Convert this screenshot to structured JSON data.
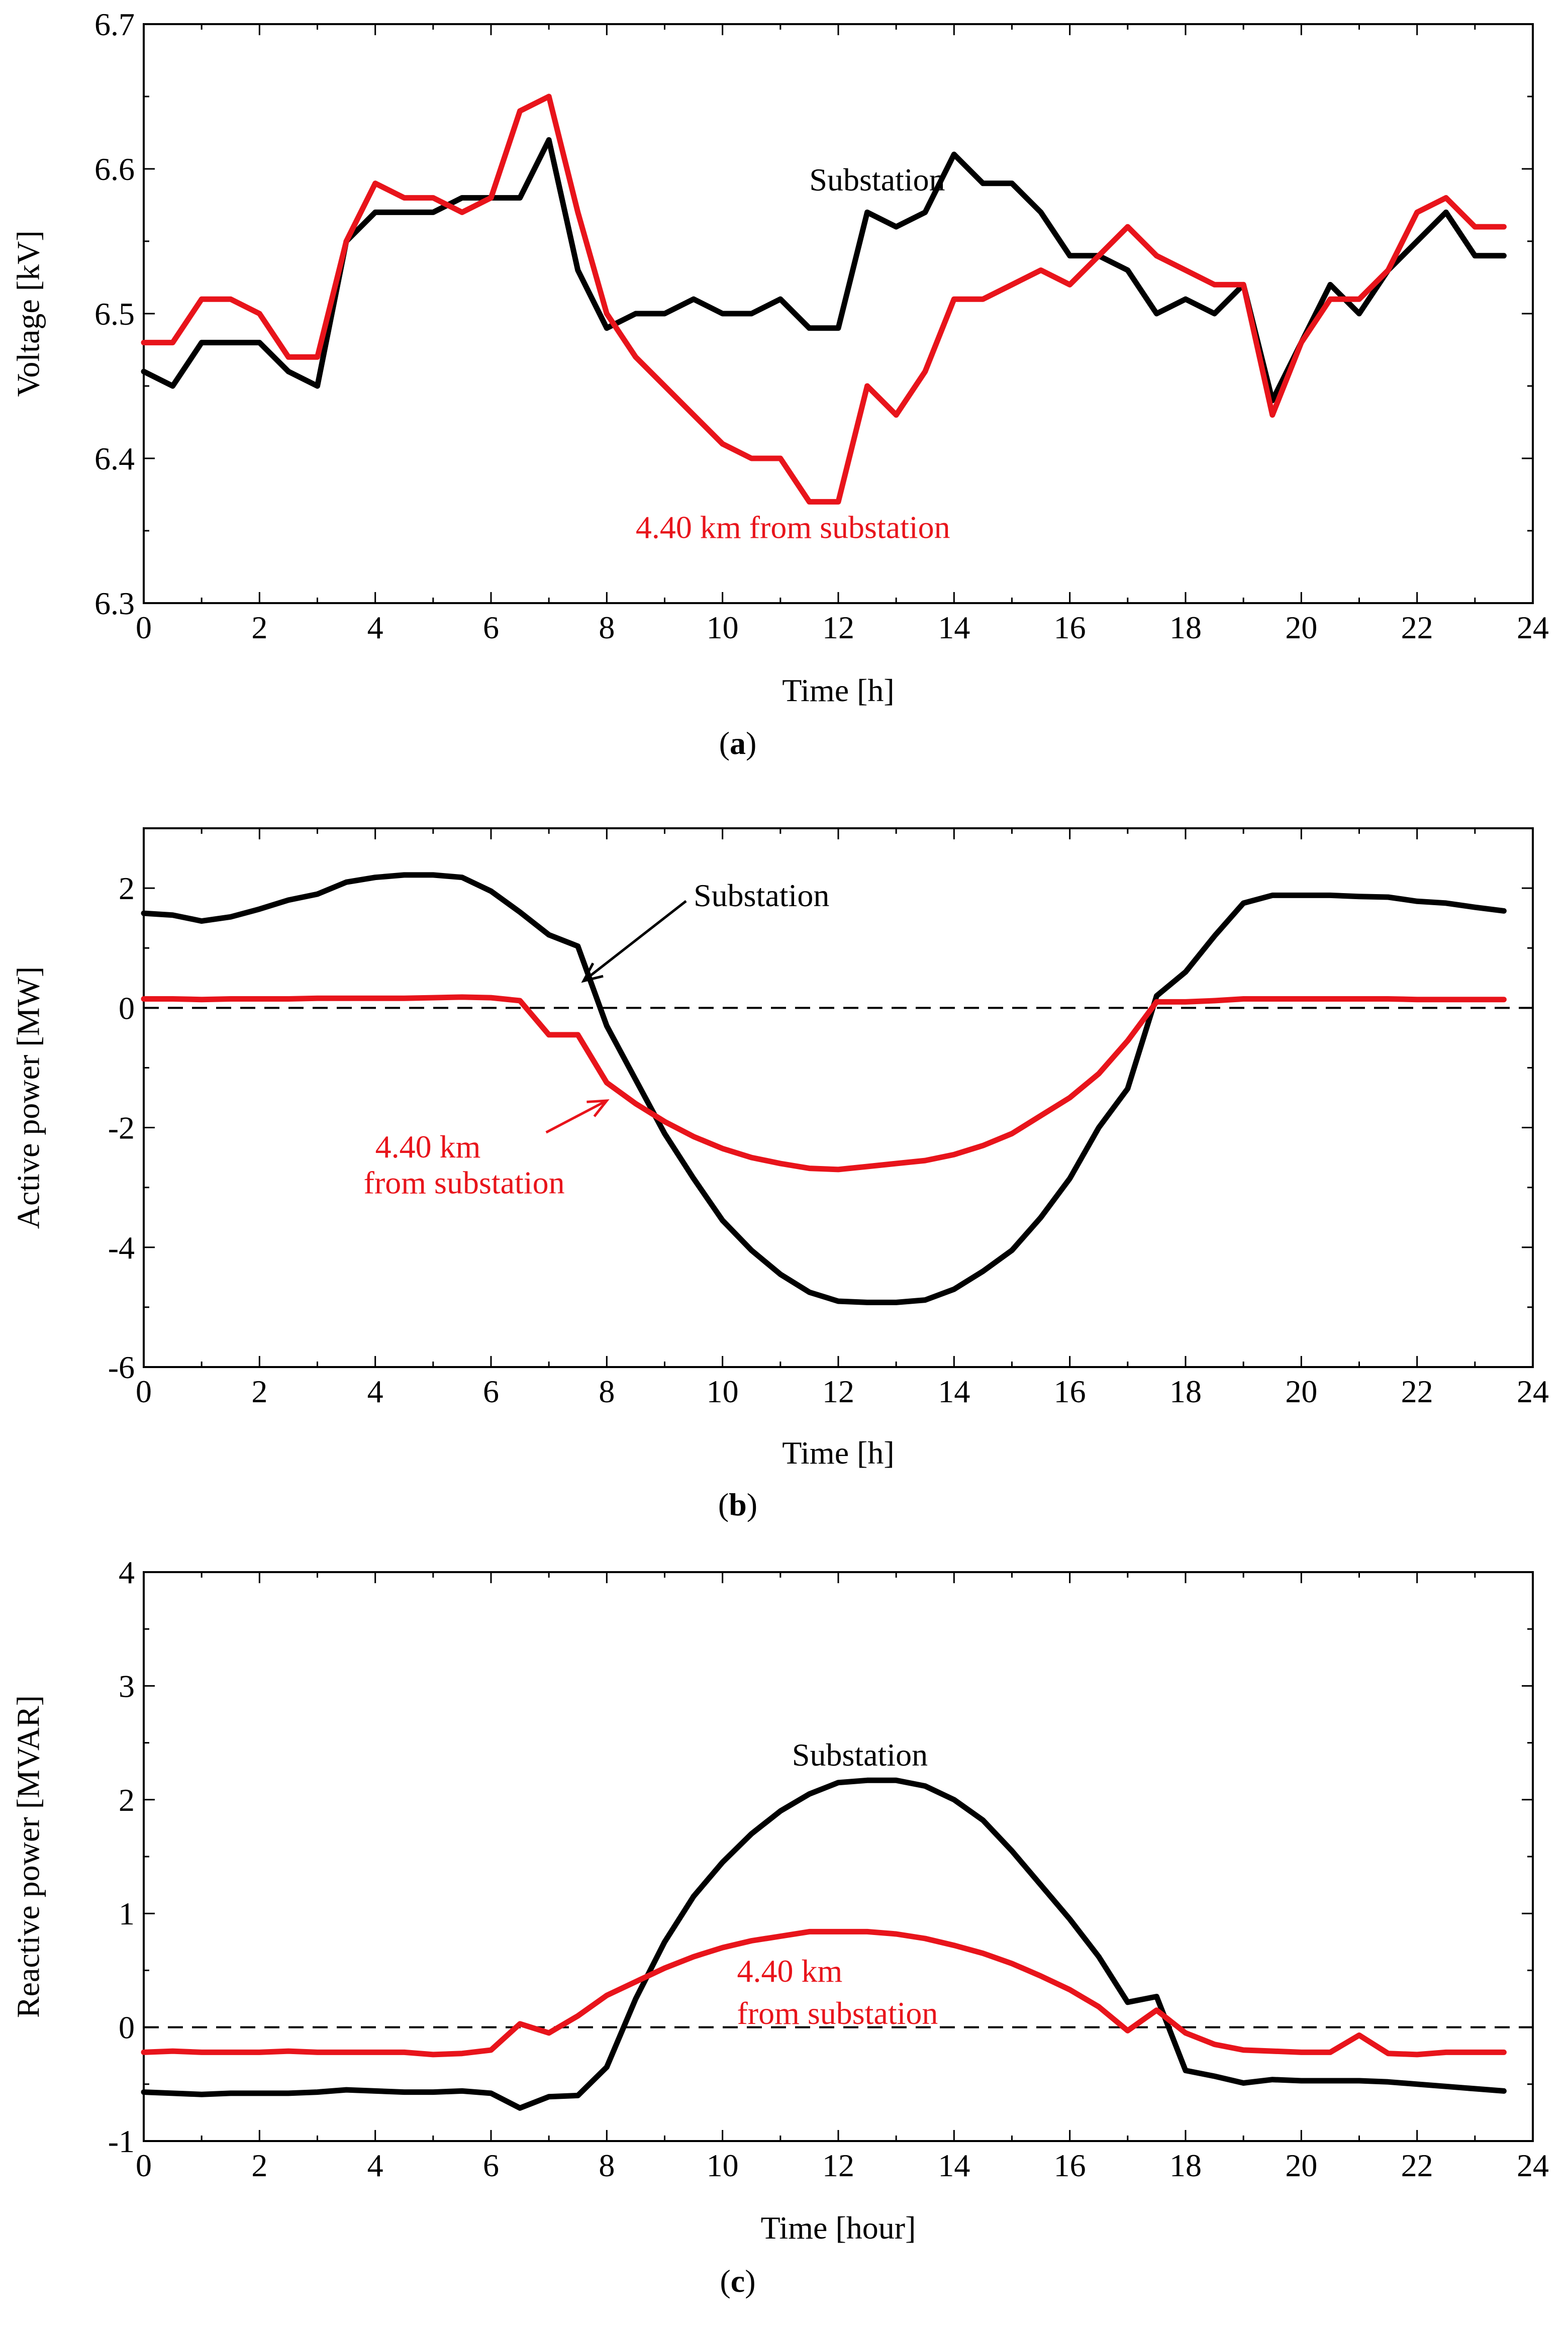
{
  "colors": {
    "substation": "#000000",
    "feeder": "#e8141b",
    "axis": "#000000",
    "zero_line": "#000000"
  },
  "chart_data": [
    {
      "type": "line",
      "panel": "a",
      "panel_label": "a",
      "xlabel": "Time [h]",
      "ylabel": "Voltage [kV]",
      "xlim": [
        0,
        24
      ],
      "ylim": [
        6.3,
        6.7
      ],
      "xticks": [
        0,
        2,
        4,
        6,
        8,
        10,
        12,
        14,
        16,
        18,
        20,
        22,
        24
      ],
      "xtick_labels": [
        "0",
        "2",
        "4",
        "6",
        "8",
        "10",
        "12",
        "14",
        "16",
        "18",
        "20",
        "22",
        "24"
      ],
      "yticks": [
        6.3,
        6.4,
        6.5,
        6.6,
        6.7
      ],
      "ytick_labels": [
        "6.3",
        "6.4",
        "6.5",
        "6.6",
        "6.7"
      ],
      "zero_line": false,
      "series": [
        {
          "name": "Substation",
          "color": "#000000",
          "x": [
            0,
            0.5,
            1,
            1.5,
            2,
            2.5,
            3,
            3.5,
            4,
            4.5,
            5,
            5.5,
            6,
            6.5,
            7,
            7.5,
            8,
            8.5,
            9,
            9.5,
            10,
            10.5,
            11,
            11.5,
            12,
            12.5,
            13,
            13.5,
            14,
            14.5,
            15,
            15.5,
            16,
            16.5,
            17,
            17.5,
            18,
            18.5,
            19,
            19.5,
            20,
            20.5,
            21,
            21.5,
            22,
            22.5,
            23,
            23.5
          ],
          "y": [
            6.46,
            6.45,
            6.48,
            6.48,
            6.48,
            6.46,
            6.45,
            6.55,
            6.57,
            6.57,
            6.57,
            6.58,
            6.58,
            6.58,
            6.62,
            6.53,
            6.49,
            6.5,
            6.5,
            6.51,
            6.5,
            6.5,
            6.51,
            6.49,
            6.49,
            6.57,
            6.56,
            6.57,
            6.61,
            6.59,
            6.59,
            6.57,
            6.54,
            6.54,
            6.53,
            6.5,
            6.51,
            6.5,
            6.52,
            6.44,
            6.48,
            6.52,
            6.5,
            6.53,
            6.55,
            6.57,
            6.54,
            6.54
          ]
        },
        {
          "name": "4.40 km from substation",
          "color": "#e8141b",
          "x": [
            0,
            0.5,
            1,
            1.5,
            2,
            2.5,
            3,
            3.5,
            4,
            4.5,
            5,
            5.5,
            6,
            6.5,
            7,
            7.5,
            8,
            8.5,
            9,
            9.5,
            10,
            10.5,
            11,
            11.5,
            12,
            12.5,
            13,
            13.5,
            14,
            14.5,
            15,
            15.5,
            16,
            16.5,
            17,
            17.5,
            18,
            18.5,
            19,
            19.5,
            20,
            20.5,
            21,
            21.5,
            22,
            22.5,
            23,
            23.5
          ],
          "y": [
            6.48,
            6.48,
            6.51,
            6.51,
            6.5,
            6.47,
            6.47,
            6.55,
            6.59,
            6.58,
            6.58,
            6.57,
            6.58,
            6.64,
            6.65,
            6.57,
            6.5,
            6.47,
            6.45,
            6.43,
            6.41,
            6.4,
            6.4,
            6.37,
            6.37,
            6.45,
            6.43,
            6.46,
            6.51,
            6.51,
            6.52,
            6.53,
            6.52,
            6.54,
            6.56,
            6.54,
            6.53,
            6.52,
            6.52,
            6.43,
            6.48,
            6.51,
            6.51,
            6.53,
            6.57,
            6.58,
            6.56,
            6.56
          ]
        }
      ],
      "annotations": [
        {
          "text": "Substation",
          "color": "#000000",
          "at_x": 11.5,
          "at_y": 6.585
        },
        {
          "text": "4.40 km from substation",
          "color": "#e8141b",
          "at_x": 8.5,
          "at_y": 6.345
        }
      ]
    },
    {
      "type": "line",
      "panel": "b",
      "panel_label": "b",
      "xlabel": "Time [h]",
      "ylabel": "Active power [MW]",
      "xlim": [
        0,
        24
      ],
      "ylim": [
        -6,
        3
      ],
      "xticks": [
        0,
        2,
        4,
        6,
        8,
        10,
        12,
        14,
        16,
        18,
        20,
        22,
        24
      ],
      "xtick_labels": [
        "0",
        "2",
        "4",
        "6",
        "8",
        "10",
        "12",
        "14",
        "16",
        "18",
        "20",
        "22",
        "24"
      ],
      "yticks": [
        -6,
        -4,
        -2,
        0,
        2
      ],
      "ytick_labels": [
        "-6",
        "-4",
        "-2",
        "0",
        "2"
      ],
      "zero_line": true,
      "series": [
        {
          "name": "Substation",
          "color": "#000000",
          "x": [
            0,
            0.5,
            1,
            1.5,
            2,
            2.5,
            3,
            3.5,
            4,
            4.5,
            5,
            5.5,
            6,
            6.5,
            7,
            7.5,
            8,
            8.5,
            9,
            9.5,
            10,
            10.5,
            11,
            11.5,
            12,
            12.5,
            13,
            13.5,
            14,
            14.5,
            15,
            15.5,
            16,
            16.5,
            17,
            17.5,
            18,
            18.5,
            19,
            19.5,
            20,
            20.5,
            21,
            21.5,
            22,
            22.5,
            23,
            23.5
          ],
          "y": [
            1.58,
            1.55,
            1.45,
            1.52,
            1.65,
            1.8,
            1.9,
            2.1,
            2.18,
            2.22,
            2.22,
            2.18,
            1.95,
            1.6,
            1.22,
            1.03,
            -0.3,
            -1.2,
            -2.1,
            -2.85,
            -3.55,
            -4.05,
            -4.45,
            -4.75,
            -4.9,
            -4.92,
            -4.92,
            -4.88,
            -4.7,
            -4.4,
            -4.05,
            -3.5,
            -2.85,
            -2.0,
            -1.35,
            0.2,
            0.6,
            1.2,
            1.75,
            1.88,
            1.88,
            1.88,
            1.86,
            1.85,
            1.78,
            1.75,
            1.68,
            1.62
          ]
        },
        {
          "name": "4.40 km from substation",
          "color": "#e8141b",
          "x": [
            0,
            0.5,
            1,
            1.5,
            2,
            2.5,
            3,
            3.5,
            4,
            4.5,
            5,
            5.5,
            6,
            6.5,
            7,
            7.5,
            8,
            8.5,
            9,
            9.5,
            10,
            10.5,
            11,
            11.5,
            12,
            12.5,
            13,
            13.5,
            14,
            14.5,
            15,
            15.5,
            16,
            16.5,
            17,
            17.5,
            18,
            18.5,
            19,
            19.5,
            20,
            20.5,
            21,
            21.5,
            22,
            22.5,
            23,
            23.5
          ],
          "y": [
            0.15,
            0.15,
            0.14,
            0.15,
            0.15,
            0.15,
            0.16,
            0.16,
            0.16,
            0.16,
            0.17,
            0.18,
            0.17,
            0.12,
            -0.45,
            -0.45,
            -1.25,
            -1.6,
            -1.9,
            -2.15,
            -2.35,
            -2.5,
            -2.6,
            -2.68,
            -2.7,
            -2.65,
            -2.6,
            -2.55,
            -2.45,
            -2.3,
            -2.1,
            -1.8,
            -1.5,
            -1.1,
            -0.55,
            0.1,
            0.1,
            0.12,
            0.15,
            0.15,
            0.15,
            0.15,
            0.15,
            0.15,
            0.14,
            0.14,
            0.14,
            0.14
          ]
        }
      ],
      "annotations": [
        {
          "text": "Substation",
          "color": "#000000",
          "at_x": 9.5,
          "at_y": 1.7,
          "arrow_to": [
            7.6,
            0.45
          ]
        },
        {
          "text": "4.40 km",
          "color": "#e8141b",
          "at_x": 4.0,
          "at_y": -2.5,
          "arrow_to": [
            8.0,
            -1.55
          ]
        },
        {
          "text": "from substation",
          "color": "#e8141b",
          "at_x": 3.8,
          "at_y": -3.1
        }
      ]
    },
    {
      "type": "line",
      "panel": "c",
      "panel_label": "c",
      "xlabel": "Time [hour]",
      "ylabel": "Reactive power [MVAR]",
      "xlim": [
        0,
        24
      ],
      "ylim": [
        -1,
        4
      ],
      "xticks": [
        0,
        2,
        4,
        6,
        8,
        10,
        12,
        14,
        16,
        18,
        20,
        22,
        24
      ],
      "xtick_labels": [
        "0",
        "2",
        "4",
        "6",
        "8",
        "10",
        "12",
        "14",
        "16",
        "18",
        "20",
        "22",
        "24"
      ],
      "yticks": [
        -1,
        0,
        1,
        2,
        3,
        4
      ],
      "ytick_labels": [
        "-1",
        "0",
        "1",
        "2",
        "3",
        "4"
      ],
      "zero_line": true,
      "series": [
        {
          "name": "Substation",
          "color": "#000000",
          "x": [
            0,
            0.5,
            1,
            1.5,
            2,
            2.5,
            3,
            3.5,
            4,
            4.5,
            5,
            5.5,
            6,
            6.5,
            7,
            7.5,
            8,
            8.5,
            9,
            9.5,
            10,
            10.5,
            11,
            11.5,
            12,
            12.5,
            13,
            13.5,
            14,
            14.5,
            15,
            15.5,
            16,
            16.5,
            17,
            17.5,
            18,
            18.5,
            19,
            19.5,
            20,
            20.5,
            21,
            21.5,
            22,
            22.5,
            23,
            23.5
          ],
          "y": [
            -0.57,
            -0.58,
            -0.59,
            -0.58,
            -0.58,
            -0.58,
            -0.57,
            -0.55,
            -0.56,
            -0.57,
            -0.57,
            -0.56,
            -0.58,
            -0.71,
            -0.61,
            -0.6,
            -0.35,
            0.25,
            0.75,
            1.15,
            1.45,
            1.7,
            1.9,
            2.05,
            2.15,
            2.17,
            2.17,
            2.12,
            2.0,
            1.82,
            1.55,
            1.25,
            0.95,
            0.62,
            0.22,
            0.27,
            -0.38,
            -0.43,
            -0.49,
            -0.46,
            -0.47,
            -0.47,
            -0.47,
            -0.48,
            -0.5,
            -0.52,
            -0.54,
            -0.56
          ]
        },
        {
          "name": "4.40 km from substation",
          "color": "#e8141b",
          "x": [
            0,
            0.5,
            1,
            1.5,
            2,
            2.5,
            3,
            3.5,
            4,
            4.5,
            5,
            5.5,
            6,
            6.5,
            7,
            7.5,
            8,
            8.5,
            9,
            9.5,
            10,
            10.5,
            11,
            11.5,
            12,
            12.5,
            13,
            13.5,
            14,
            14.5,
            15,
            15.5,
            16,
            16.5,
            17,
            17.5,
            18,
            18.5,
            19,
            19.5,
            20,
            20.5,
            21,
            21.5,
            22,
            22.5,
            23,
            23.5
          ],
          "y": [
            -0.22,
            -0.21,
            -0.22,
            -0.22,
            -0.22,
            -0.21,
            -0.22,
            -0.22,
            -0.22,
            -0.22,
            -0.24,
            -0.23,
            -0.2,
            0.03,
            -0.05,
            0.1,
            0.28,
            0.4,
            0.52,
            0.62,
            0.7,
            0.76,
            0.8,
            0.84,
            0.84,
            0.84,
            0.82,
            0.78,
            0.72,
            0.65,
            0.56,
            0.45,
            0.33,
            0.18,
            -0.03,
            0.15,
            -0.05,
            -0.15,
            -0.2,
            -0.21,
            -0.22,
            -0.22,
            -0.07,
            -0.23,
            -0.24,
            -0.22,
            -0.22,
            -0.22
          ]
        }
      ],
      "annotations": [
        {
          "text": "Substation",
          "color": "#000000",
          "at_x": 11.2,
          "at_y": 2.3
        },
        {
          "text": "4.40 km",
          "color": "#e8141b",
          "at_x": 10.25,
          "at_y": 0.4
        },
        {
          "text": "from substation",
          "color": "#e8141b",
          "at_x": 10.25,
          "at_y": 0.03
        }
      ]
    }
  ]
}
